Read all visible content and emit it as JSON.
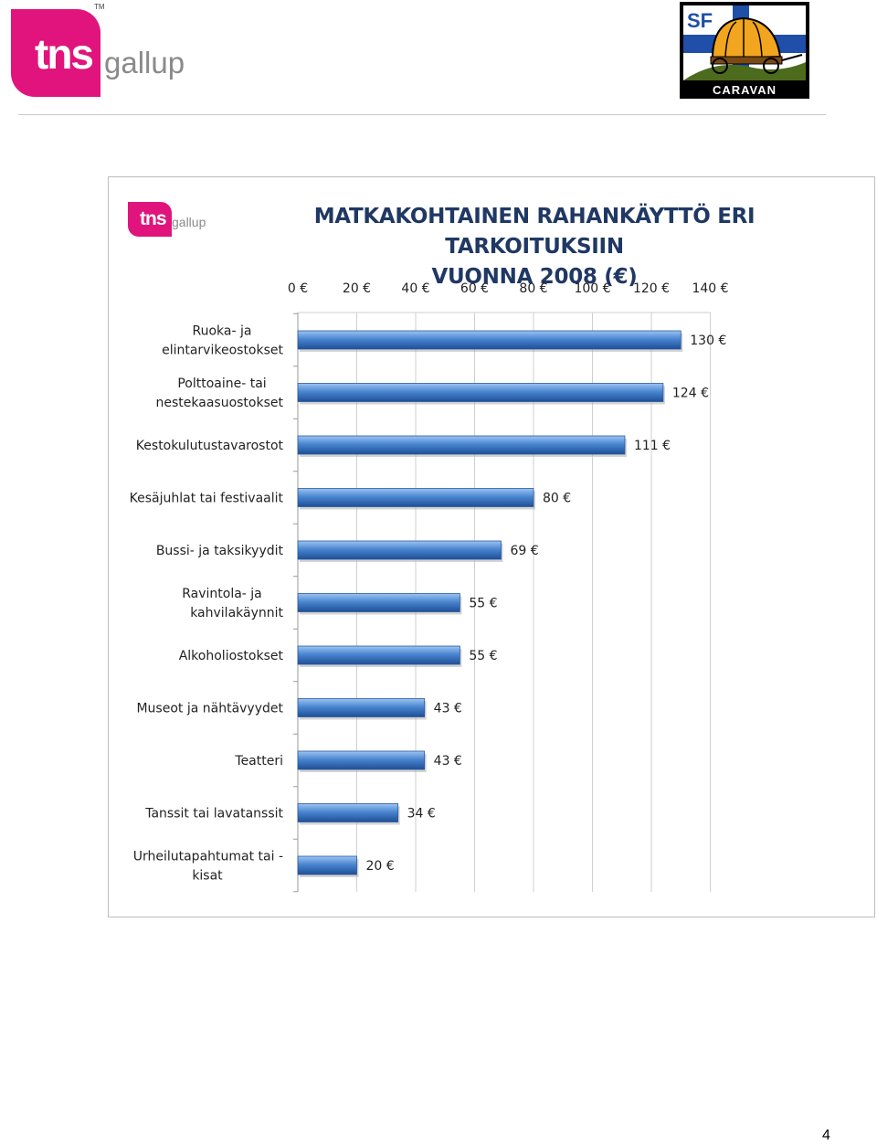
{
  "header": {
    "tns_logo": {
      "brand": "tns",
      "sub": "gallup",
      "tm": "TM",
      "color": "#e0147c"
    },
    "sf_logo": {
      "top": "SF",
      "bottom": "CARAVAN"
    }
  },
  "chart_data": {
    "type": "bar",
    "orientation": "horizontal",
    "title_lines": [
      "MATKAKOHTAINEN RAHANKÄYTTÖ ERI TARKOITUKSIIN",
      "VUONNA 2008 (€)"
    ],
    "xlim": [
      0,
      140
    ],
    "ticks": [
      0,
      20,
      40,
      60,
      80,
      100,
      120,
      140
    ],
    "tick_labels": [
      "0 €",
      "20 €",
      "40 €",
      "60 €",
      "80 €",
      "100 €",
      "120 €",
      "140 €"
    ],
    "grid": true,
    "axis_position": "top",
    "bar_color": "#4a86d0",
    "categories": [
      [
        "Ruoka- ja",
        "elintarvikeostokset"
      ],
      [
        "Polttoaine- tai",
        "nestekaasuostokset"
      ],
      [
        "Kestokulutustavarostot"
      ],
      [
        "Kesäjuhlat tai festivaalit"
      ],
      [
        "Bussi- ja taksikyydit"
      ],
      [
        "Ravintola- ja",
        "kahvilakäynnit"
      ],
      [
        "Alkoholiostokset"
      ],
      [
        "Museot ja nähtävyydet"
      ],
      [
        "Teatteri"
      ],
      [
        "Tanssit tai lavatanssit"
      ],
      [
        "Urheilutapahtumat tai -",
        "kisat"
      ]
    ],
    "values": [
      130,
      124,
      111,
      80,
      69,
      55,
      55,
      43,
      43,
      34,
      20
    ],
    "data_labels": [
      "130 €",
      "124 €",
      "111 €",
      "80 €",
      "69 €",
      "55 €",
      "55 €",
      "43 €",
      "43 €",
      "34 €",
      "20 €"
    ]
  },
  "footer": {
    "page_number": "4"
  }
}
